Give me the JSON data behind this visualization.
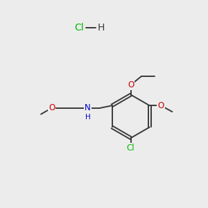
{
  "background_color": "#ececec",
  "bond_color": "#3a3a3a",
  "atom_colors": {
    "O": "#cc0000",
    "N": "#0000cc",
    "Cl": "#00bb00",
    "H": "#3a3a3a",
    "C": "#3a3a3a"
  },
  "hcl_color": "#00bb00",
  "figsize": [
    3.0,
    3.0
  ],
  "dpi": 100
}
